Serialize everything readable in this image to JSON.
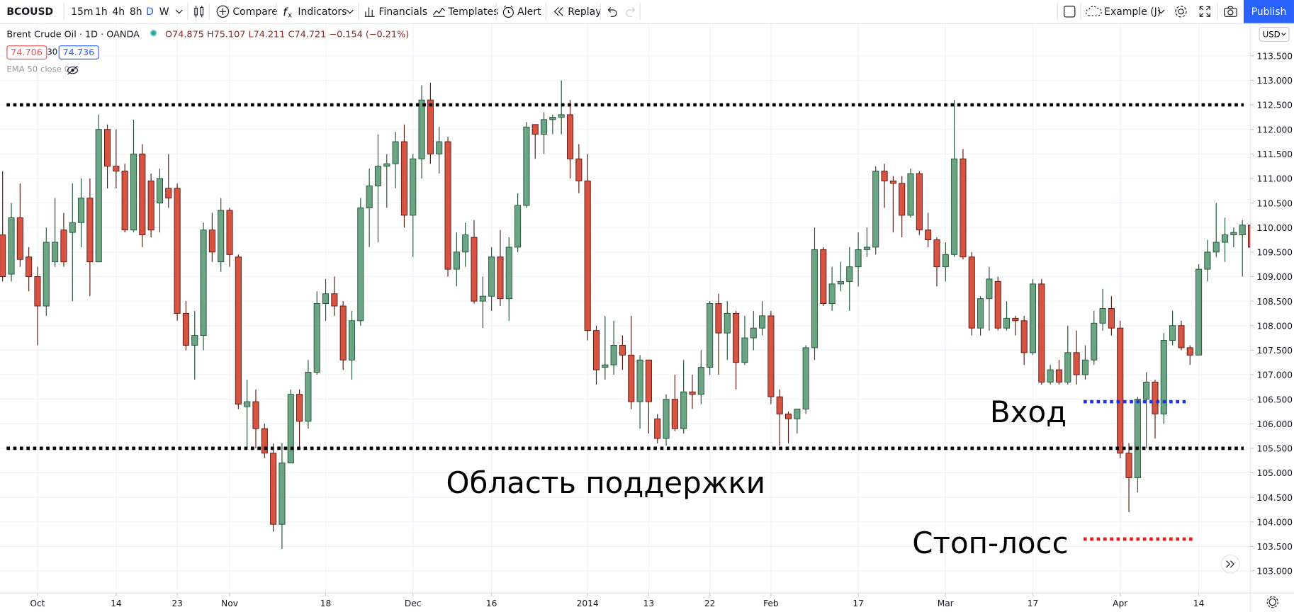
{
  "toolbar": {
    "symbol": "BCOUSD",
    "intervals": [
      "15m",
      "1h",
      "4h",
      "8h",
      "D",
      "W"
    ],
    "compare": "Compare",
    "indicators": "Indicators",
    "financials": "Financials",
    "templates": "Templates",
    "alert": "Alert",
    "replay": "Replay",
    "layout": "Example (J)",
    "publish": "Publish"
  },
  "legend": {
    "title": "Brent Crude Oil · 1D · OANDA",
    "ohlc": "O74.875 H75.107 L74.211 C74.721 −0.154 (−0.21%)",
    "bid": "74.706",
    "spread": "30",
    "ask": "74.736",
    "indicator": "EMA 50 close 0"
  },
  "currency": "USD",
  "chart_data": {
    "type": "candlestick",
    "up_color": "#6ba583",
    "up_border": "#225437",
    "down_color": "#d75442",
    "down_border": "#5b1a13",
    "grid": true,
    "xlim": [
      -0.3,
      142.9
    ],
    "ylim": [
      102.55,
      114.15
    ],
    "xticks": [
      {
        "value": 4,
        "label": "Oct"
      },
      {
        "value": 13,
        "label": "14"
      },
      {
        "value": 20,
        "label": "23"
      },
      {
        "value": 26,
        "label": "Nov"
      },
      {
        "value": 37,
        "label": "18"
      },
      {
        "value": 47,
        "label": "Dec"
      },
      {
        "value": 56,
        "label": "16"
      },
      {
        "value": 67,
        "label": "2014"
      },
      {
        "value": 74,
        "label": "13"
      },
      {
        "value": 81,
        "label": "22"
      },
      {
        "value": 88,
        "label": "Feb"
      },
      {
        "value": 98,
        "label": "17"
      },
      {
        "value": 108,
        "label": "Mar"
      },
      {
        "value": 118,
        "label": "17"
      },
      {
        "value": 128,
        "label": "Apr"
      },
      {
        "value": 137,
        "label": "14"
      }
    ],
    "yticks": [
      {
        "value": 103,
        "label": "103.000"
      },
      {
        "value": 103.5,
        "label": "103.500"
      },
      {
        "value": 104,
        "label": "104.000"
      },
      {
        "value": 104.5,
        "label": "104.500"
      },
      {
        "value": 105,
        "label": "105.000"
      },
      {
        "value": 105.5,
        "label": "105.500"
      },
      {
        "value": 106,
        "label": "106.000"
      },
      {
        "value": 106.5,
        "label": "106.500"
      },
      {
        "value": 107,
        "label": "107.000"
      },
      {
        "value": 107.5,
        "label": "107.500"
      },
      {
        "value": 108,
        "label": "108.000"
      },
      {
        "value": 108.5,
        "label": "108.500"
      },
      {
        "value": 109,
        "label": "109.000"
      },
      {
        "value": 109.5,
        "label": "109.500"
      },
      {
        "value": 110,
        "label": "110.000"
      },
      {
        "value": 110.5,
        "label": "110.500"
      },
      {
        "value": 111,
        "label": "111.000"
      },
      {
        "value": 111.5,
        "label": "111.500"
      },
      {
        "value": 112,
        "label": "112.000"
      },
      {
        "value": 112.5,
        "label": "112.500"
      },
      {
        "value": 113,
        "label": "113.000"
      },
      {
        "value": 113.5,
        "label": "113.500"
      }
    ],
    "levels": [
      {
        "value": 112.5,
        "color": "#000000"
      },
      {
        "value": 105.5,
        "color": "#000000"
      },
      {
        "value": 106.45,
        "from": 123.8,
        "to": 135.5,
        "color": "#1a2ff0"
      },
      {
        "value": 103.65,
        "from": 123.8,
        "to": 136.3,
        "color": "#f01a1a"
      }
    ],
    "annotations": [
      "Вход",
      "Область поддержки",
      "Стоп-лосс"
    ],
    "candles": [
      {
        "o": 109.85,
        "h": 111.15,
        "l": 108.9,
        "c": 109.0
      },
      {
        "o": 109.05,
        "h": 110.5,
        "l": 108.9,
        "c": 110.2
      },
      {
        "o": 110.2,
        "h": 110.9,
        "l": 109.2,
        "c": 109.35
      },
      {
        "o": 109.4,
        "h": 109.6,
        "l": 108.7,
        "c": 109.0
      },
      {
        "o": 109.0,
        "h": 109.2,
        "l": 107.6,
        "c": 108.4
      },
      {
        "o": 108.4,
        "h": 110.0,
        "l": 108.2,
        "c": 109.7
      },
      {
        "o": 109.3,
        "h": 110.6,
        "l": 109.2,
        "c": 109.7
      },
      {
        "o": 109.95,
        "h": 110.3,
        "l": 109.2,
        "c": 109.3
      },
      {
        "o": 109.9,
        "h": 110.9,
        "l": 108.5,
        "c": 110.1
      },
      {
        "o": 110.1,
        "h": 111.0,
        "l": 109.6,
        "c": 110.6
      },
      {
        "o": 110.6,
        "h": 111.0,
        "l": 108.6,
        "c": 109.3
      },
      {
        "o": 109.3,
        "h": 112.3,
        "l": 109.3,
        "c": 112.0
      },
      {
        "o": 112.0,
        "h": 112.1,
        "l": 110.8,
        "c": 111.25
      },
      {
        "o": 111.25,
        "h": 112.0,
        "l": 110.8,
        "c": 111.15
      },
      {
        "o": 111.15,
        "h": 111.3,
        "l": 109.9,
        "c": 109.95
      },
      {
        "o": 109.95,
        "h": 112.2,
        "l": 109.9,
        "c": 111.5
      },
      {
        "o": 111.5,
        "h": 111.7,
        "l": 109.6,
        "c": 109.85
      },
      {
        "o": 110.95,
        "h": 111.1,
        "l": 109.8,
        "c": 109.95
      },
      {
        "o": 110.5,
        "h": 111.2,
        "l": 109.9,
        "c": 111.0
      },
      {
        "o": 110.8,
        "h": 111.5,
        "l": 110.4,
        "c": 110.6
      },
      {
        "o": 110.8,
        "h": 110.9,
        "l": 108.1,
        "c": 108.25
      },
      {
        "o": 108.25,
        "h": 108.5,
        "l": 107.5,
        "c": 107.6
      },
      {
        "o": 107.6,
        "h": 108.3,
        "l": 106.9,
        "c": 107.8
      },
      {
        "o": 107.8,
        "h": 110.1,
        "l": 107.5,
        "c": 109.95
      },
      {
        "o": 109.95,
        "h": 110.3,
        "l": 109.3,
        "c": 109.5
      },
      {
        "o": 109.3,
        "h": 110.6,
        "l": 109.1,
        "c": 110.35
      },
      {
        "o": 110.35,
        "h": 110.4,
        "l": 109.2,
        "c": 109.45
      },
      {
        "o": 109.4,
        "h": 109.45,
        "l": 106.3,
        "c": 106.4
      },
      {
        "o": 106.35,
        "h": 106.9,
        "l": 105.5,
        "c": 106.45
      },
      {
        "o": 106.45,
        "h": 106.7,
        "l": 105.5,
        "c": 105.9
      },
      {
        "o": 105.9,
        "h": 106.0,
        "l": 105.3,
        "c": 105.4
      },
      {
        "o": 105.4,
        "h": 105.6,
        "l": 103.8,
        "c": 103.95
      },
      {
        "o": 103.95,
        "h": 105.6,
        "l": 103.45,
        "c": 105.2
      },
      {
        "o": 105.2,
        "h": 106.7,
        "l": 105.2,
        "c": 106.6
      },
      {
        "o": 106.6,
        "h": 106.7,
        "l": 105.5,
        "c": 106.05
      },
      {
        "o": 106.05,
        "h": 107.3,
        "l": 105.9,
        "c": 107.05
      },
      {
        "o": 107.05,
        "h": 108.7,
        "l": 107.0,
        "c": 108.45
      },
      {
        "o": 108.45,
        "h": 108.95,
        "l": 108.1,
        "c": 108.65
      },
      {
        "o": 108.65,
        "h": 109.0,
        "l": 108.2,
        "c": 108.4
      },
      {
        "o": 108.4,
        "h": 108.5,
        "l": 107.1,
        "c": 107.3
      },
      {
        "o": 107.3,
        "h": 108.3,
        "l": 106.9,
        "c": 108.1
      },
      {
        "o": 108.1,
        "h": 110.6,
        "l": 108.0,
        "c": 110.4
      },
      {
        "o": 110.4,
        "h": 111.2,
        "l": 109.6,
        "c": 110.85
      },
      {
        "o": 110.85,
        "h": 111.9,
        "l": 109.7,
        "c": 111.25
      },
      {
        "o": 111.25,
        "h": 111.5,
        "l": 110.4,
        "c": 111.3
      },
      {
        "o": 111.3,
        "h": 111.95,
        "l": 110.8,
        "c": 111.75
      },
      {
        "o": 111.75,
        "h": 112.1,
        "l": 110.0,
        "c": 110.25
      },
      {
        "o": 110.25,
        "h": 111.5,
        "l": 109.4,
        "c": 111.4
      },
      {
        "o": 111.4,
        "h": 112.9,
        "l": 111.0,
        "c": 112.6
      },
      {
        "o": 112.6,
        "h": 112.95,
        "l": 111.3,
        "c": 111.5
      },
      {
        "o": 111.5,
        "h": 112.05,
        "l": 111.1,
        "c": 111.75
      },
      {
        "o": 111.75,
        "h": 111.85,
        "l": 109.0,
        "c": 109.15
      },
      {
        "o": 109.15,
        "h": 109.9,
        "l": 108.8,
        "c": 109.5
      },
      {
        "o": 109.5,
        "h": 110.1,
        "l": 109.2,
        "c": 109.85
      },
      {
        "o": 109.8,
        "h": 110.15,
        "l": 108.45,
        "c": 108.5
      },
      {
        "o": 108.5,
        "h": 109.0,
        "l": 107.95,
        "c": 108.6
      },
      {
        "o": 108.6,
        "h": 109.6,
        "l": 108.3,
        "c": 109.4
      },
      {
        "o": 109.4,
        "h": 109.95,
        "l": 108.4,
        "c": 108.55
      },
      {
        "o": 108.55,
        "h": 109.8,
        "l": 108.1,
        "c": 109.6
      },
      {
        "o": 109.6,
        "h": 110.7,
        "l": 109.5,
        "c": 110.45
      },
      {
        "o": 110.45,
        "h": 112.15,
        "l": 110.4,
        "c": 112.05
      },
      {
        "o": 112.1,
        "h": 112.1,
        "l": 111.4,
        "c": 111.9
      },
      {
        "o": 111.9,
        "h": 112.35,
        "l": 111.5,
        "c": 112.2
      },
      {
        "o": 112.2,
        "h": 112.3,
        "l": 111.9,
        "c": 112.25
      },
      {
        "o": 112.25,
        "h": 113.0,
        "l": 111.9,
        "c": 112.3
      },
      {
        "o": 112.3,
        "h": 112.6,
        "l": 111.0,
        "c": 111.4
      },
      {
        "o": 111.4,
        "h": 111.7,
        "l": 110.7,
        "c": 110.95
      },
      {
        "o": 110.95,
        "h": 111.5,
        "l": 107.7,
        "c": 107.9
      },
      {
        "o": 107.9,
        "h": 108.0,
        "l": 106.8,
        "c": 107.1
      },
      {
        "o": 107.15,
        "h": 108.2,
        "l": 106.9,
        "c": 107.2
      },
      {
        "o": 107.2,
        "h": 108.1,
        "l": 107.0,
        "c": 107.6
      },
      {
        "o": 107.6,
        "h": 107.8,
        "l": 107.1,
        "c": 107.4
      },
      {
        "o": 107.4,
        "h": 108.2,
        "l": 106.3,
        "c": 106.45
      },
      {
        "o": 106.45,
        "h": 107.4,
        "l": 105.9,
        "c": 107.3
      },
      {
        "o": 107.3,
        "h": 107.3,
        "l": 105.8,
        "c": 106.45
      },
      {
        "o": 106.1,
        "h": 106.2,
        "l": 105.6,
        "c": 105.7
      },
      {
        "o": 105.7,
        "h": 106.6,
        "l": 105.55,
        "c": 106.5
      },
      {
        "o": 106.5,
        "h": 107.0,
        "l": 105.85,
        "c": 105.9
      },
      {
        "o": 105.9,
        "h": 107.3,
        "l": 105.8,
        "c": 106.65
      },
      {
        "o": 106.65,
        "h": 107.0,
        "l": 106.3,
        "c": 106.6
      },
      {
        "o": 106.6,
        "h": 107.5,
        "l": 106.4,
        "c": 107.15
      },
      {
        "o": 107.15,
        "h": 108.5,
        "l": 107.0,
        "c": 108.45
      },
      {
        "o": 108.45,
        "h": 108.65,
        "l": 107.0,
        "c": 107.85
      },
      {
        "o": 107.85,
        "h": 108.5,
        "l": 107.3,
        "c": 108.25
      },
      {
        "o": 108.25,
        "h": 108.3,
        "l": 106.7,
        "c": 107.25
      },
      {
        "o": 107.25,
        "h": 108.2,
        "l": 107.2,
        "c": 107.75
      },
      {
        "o": 107.75,
        "h": 108.3,
        "l": 107.5,
        "c": 107.95
      },
      {
        "o": 107.95,
        "h": 108.5,
        "l": 107.8,
        "c": 108.2
      },
      {
        "o": 108.2,
        "h": 108.3,
        "l": 106.4,
        "c": 106.55
      },
      {
        "o": 106.55,
        "h": 106.7,
        "l": 105.55,
        "c": 106.2
      },
      {
        "o": 106.2,
        "h": 106.25,
        "l": 105.6,
        "c": 106.1
      },
      {
        "o": 106.1,
        "h": 106.3,
        "l": 105.8,
        "c": 106.3
      },
      {
        "o": 106.3,
        "h": 107.6,
        "l": 106.2,
        "c": 107.55
      },
      {
        "o": 107.55,
        "h": 110.0,
        "l": 107.3,
        "c": 109.55
      },
      {
        "o": 109.55,
        "h": 109.6,
        "l": 108.4,
        "c": 108.45
      },
      {
        "o": 108.45,
        "h": 109.2,
        "l": 108.3,
        "c": 108.85
      },
      {
        "o": 108.85,
        "h": 109.3,
        "l": 108.7,
        "c": 108.9
      },
      {
        "o": 108.9,
        "h": 109.6,
        "l": 108.3,
        "c": 109.2
      },
      {
        "o": 109.2,
        "h": 109.9,
        "l": 108.8,
        "c": 109.55
      },
      {
        "o": 109.55,
        "h": 110.0,
        "l": 109.4,
        "c": 109.6
      },
      {
        "o": 109.6,
        "h": 111.25,
        "l": 109.45,
        "c": 111.15
      },
      {
        "o": 111.15,
        "h": 111.3,
        "l": 110.4,
        "c": 110.95
      },
      {
        "o": 110.95,
        "h": 111.05,
        "l": 109.9,
        "c": 110.9
      },
      {
        "o": 110.9,
        "h": 111.05,
        "l": 109.8,
        "c": 110.25
      },
      {
        "o": 110.25,
        "h": 111.2,
        "l": 110.2,
        "c": 111.1
      },
      {
        "o": 111.1,
        "h": 111.15,
        "l": 109.85,
        "c": 109.95
      },
      {
        "o": 109.95,
        "h": 110.3,
        "l": 109.6,
        "c": 109.75
      },
      {
        "o": 109.75,
        "h": 109.8,
        "l": 108.8,
        "c": 109.2
      },
      {
        "o": 109.2,
        "h": 109.7,
        "l": 108.9,
        "c": 109.45
      },
      {
        "o": 109.45,
        "h": 112.6,
        "l": 109.4,
        "c": 111.4
      },
      {
        "o": 111.4,
        "h": 111.6,
        "l": 109.35,
        "c": 109.4
      },
      {
        "o": 109.4,
        "h": 109.5,
        "l": 107.8,
        "c": 107.95
      },
      {
        "o": 107.95,
        "h": 108.6,
        "l": 107.8,
        "c": 108.55
      },
      {
        "o": 108.55,
        "h": 109.2,
        "l": 107.9,
        "c": 108.95
      },
      {
        "o": 108.9,
        "h": 109.0,
        "l": 107.9,
        "c": 107.95
      },
      {
        "o": 107.95,
        "h": 108.5,
        "l": 107.9,
        "c": 108.15
      },
      {
        "o": 108.15,
        "h": 108.2,
        "l": 107.8,
        "c": 108.1
      },
      {
        "o": 108.1,
        "h": 108.2,
        "l": 107.2,
        "c": 107.45
      },
      {
        "o": 107.45,
        "h": 108.95,
        "l": 107.4,
        "c": 108.85
      },
      {
        "o": 108.85,
        "h": 108.95,
        "l": 106.8,
        "c": 106.85
      },
      {
        "o": 106.85,
        "h": 107.2,
        "l": 106.8,
        "c": 107.1
      },
      {
        "o": 107.1,
        "h": 107.3,
        "l": 106.8,
        "c": 106.85
      },
      {
        "o": 106.85,
        "h": 108.0,
        "l": 106.8,
        "c": 107.45
      },
      {
        "o": 107.45,
        "h": 107.9,
        "l": 106.8,
        "c": 107.0
      },
      {
        "o": 107.0,
        "h": 107.6,
        "l": 106.9,
        "c": 107.3
      },
      {
        "o": 107.3,
        "h": 108.3,
        "l": 107.2,
        "c": 108.05
      },
      {
        "o": 108.05,
        "h": 108.75,
        "l": 107.9,
        "c": 108.35
      },
      {
        "o": 108.35,
        "h": 108.6,
        "l": 107.8,
        "c": 107.95
      },
      {
        "o": 107.95,
        "h": 108.1,
        "l": 105.3,
        "c": 105.4
      },
      {
        "o": 105.4,
        "h": 105.6,
        "l": 104.2,
        "c": 104.9
      },
      {
        "o": 104.9,
        "h": 106.55,
        "l": 104.6,
        "c": 106.5
      },
      {
        "o": 106.5,
        "h": 107.05,
        "l": 105.5,
        "c": 106.85
      },
      {
        "o": 106.85,
        "h": 106.9,
        "l": 105.7,
        "c": 106.2
      },
      {
        "o": 106.2,
        "h": 107.85,
        "l": 106.0,
        "c": 107.7
      },
      {
        "o": 107.7,
        "h": 108.3,
        "l": 107.6,
        "c": 108.0
      },
      {
        "o": 108.0,
        "h": 108.1,
        "l": 107.5,
        "c": 107.55
      },
      {
        "o": 107.55,
        "h": 107.6,
        "l": 107.2,
        "c": 107.4
      },
      {
        "o": 107.4,
        "h": 109.25,
        "l": 107.4,
        "c": 109.15
      },
      {
        "o": 109.15,
        "h": 109.75,
        "l": 108.9,
        "c": 109.5
      },
      {
        "o": 109.5,
        "h": 110.5,
        "l": 109.4,
        "c": 109.7
      },
      {
        "o": 109.7,
        "h": 110.2,
        "l": 109.3,
        "c": 109.85
      },
      {
        "o": 109.85,
        "h": 110.0,
        "l": 109.6,
        "c": 109.9
      },
      {
        "o": 109.85,
        "h": 110.15,
        "l": 109.0,
        "c": 110.05
      },
      {
        "o": 110.05,
        "h": 110.3,
        "l": 109.5,
        "c": 109.6
      }
    ]
  }
}
